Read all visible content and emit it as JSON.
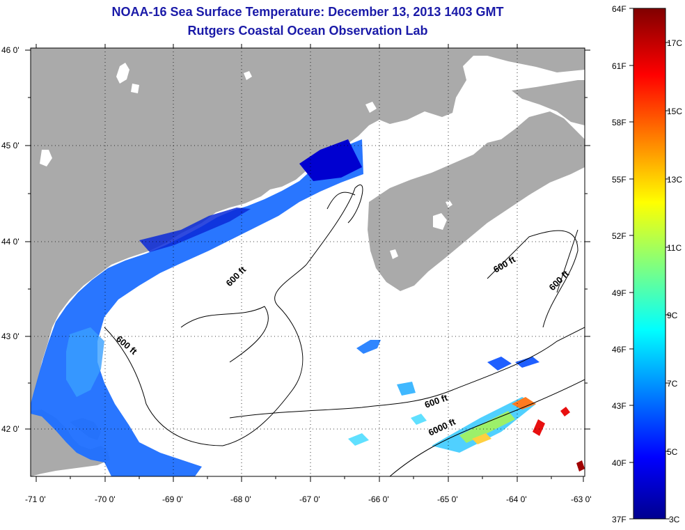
{
  "title": {
    "line1": "NOAA-16 Sea Surface Temperature:  December 13, 2013 1403 GMT",
    "line2": "Rutgers Coastal Ocean Observation Lab"
  },
  "axes": {
    "lat_labels": [
      "46 0'",
      "45 0'",
      "44 0'",
      "43 0'",
      "42 0'"
    ],
    "lon_labels": [
      "-71 0'",
      "-70 0'",
      "-69 0'",
      "-68 0'",
      "-67 0'",
      "-66 0'",
      "-65 0'",
      "-64 0'",
      "-63 0'"
    ]
  },
  "contours": {
    "labels": [
      "600 ft",
      "600 ft",
      "600 ft",
      "600 ft",
      "6000 ft"
    ]
  },
  "colorbar": {
    "fahrenheit": [
      "64F",
      "61F",
      "58F",
      "55F",
      "52F",
      "49F",
      "46F",
      "43F",
      "40F",
      "37F"
    ],
    "celsius": [
      "17C",
      "15C",
      "13C",
      "11C",
      "9C",
      "7C",
      "5C",
      "3C"
    ]
  },
  "colors": {
    "land": "#aaaaaa",
    "title": "#1a1aa8",
    "water_no_data": "#ffffff"
  }
}
